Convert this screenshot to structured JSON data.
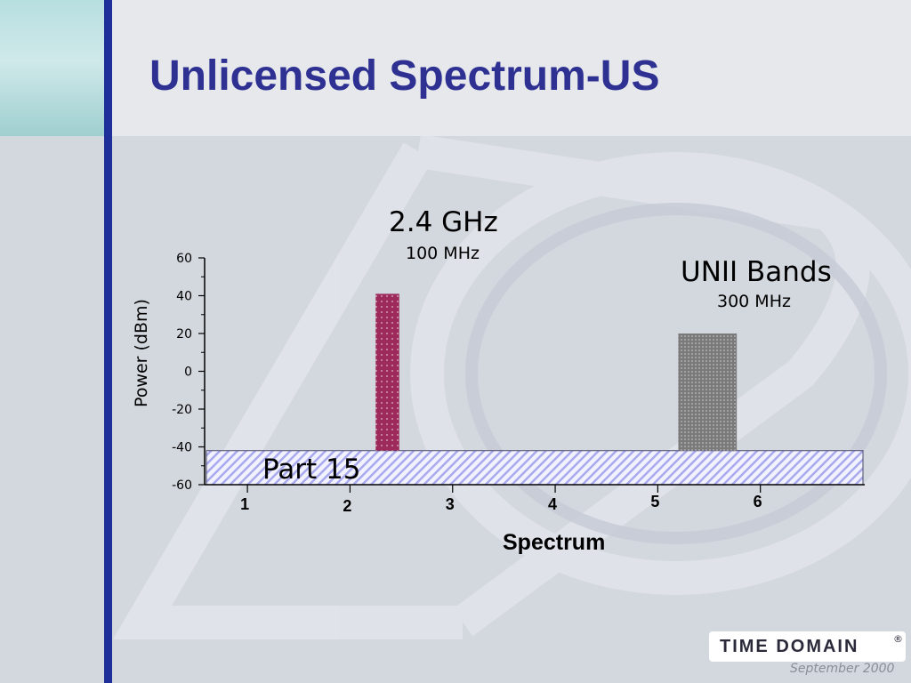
{
  "slide": {
    "title": "Unlicensed Spectrum-US",
    "footer_date": "September  2000",
    "brand": {
      "name": "TIME DOMAIN",
      "mark": "®"
    }
  },
  "colors": {
    "title": "#2e3192",
    "accent_bar": "#1f2f9a",
    "band_24ghz": "#9c2b5b",
    "band_unii": "#7a7a7a",
    "part15_stripes": "#a9a9ee"
  },
  "chart_data": {
    "type": "bar",
    "xlabel": "Spectrum",
    "ylabel": "Power (dBm)",
    "ylim": [
      -60,
      60
    ],
    "y_ticks": [
      -60,
      -40,
      -20,
      0,
      20,
      40,
      60
    ],
    "x_ticks": [
      "1",
      "2",
      "3",
      "4",
      "5",
      "6"
    ],
    "xlim": [
      0.6,
      7.0
    ],
    "grid": false,
    "baseline_band": {
      "label": "Part 15",
      "y_from": -60,
      "y_to": -42
    },
    "bars": [
      {
        "label": "2.4 GHz",
        "sublabel": "100 MHz",
        "x_from": 2.25,
        "x_to": 2.48,
        "y_from": -42,
        "y_to": 41
      },
      {
        "label": "UNII Bands",
        "sublabel": "300 MHz",
        "x_from": 5.2,
        "x_to": 5.77,
        "y_from": -42,
        "y_to": 20
      }
    ]
  }
}
